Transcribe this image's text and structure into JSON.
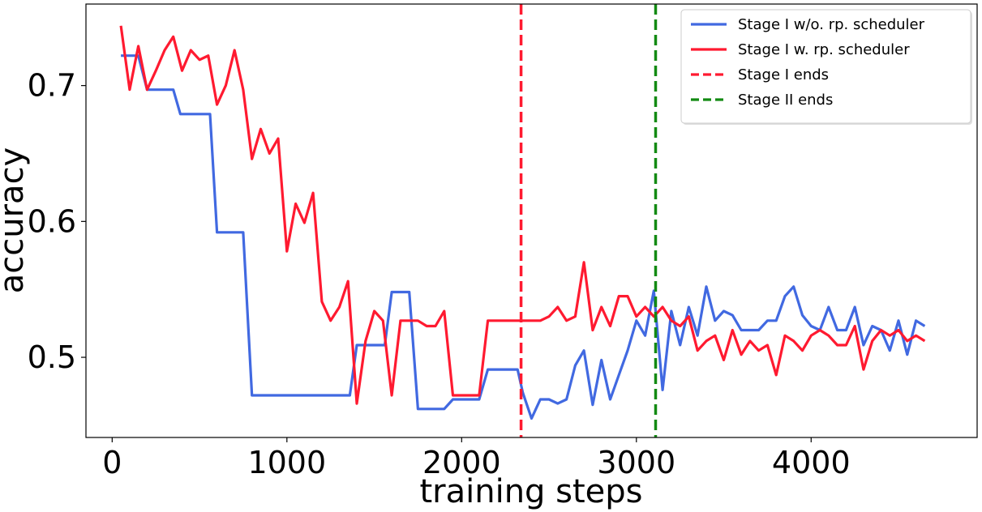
{
  "chart_data": {
    "type": "line",
    "title": "",
    "xlabel": "training steps",
    "ylabel": "accuracy",
    "xlim": [
      -150,
      4950
    ],
    "ylim": [
      0.441,
      0.76
    ],
    "xticks": [
      0,
      1000,
      2000,
      3000,
      4000
    ],
    "xtick_labels": [
      "0",
      "1000",
      "2000",
      "3000",
      "4000"
    ],
    "yticks": [
      0.5,
      0.6,
      0.7
    ],
    "ytick_labels": [
      "0.5",
      "0.6",
      "0.7"
    ],
    "grid": false,
    "legend_position": "top-right",
    "series": [
      {
        "name": "Stage I w/o. rp. scheduler",
        "color": "#4169e1",
        "style": "solid",
        "points": [
          [
            50,
            0.722
          ],
          [
            150,
            0.722
          ],
          [
            200,
            0.697
          ],
          [
            350,
            0.697
          ],
          [
            390,
            0.679
          ],
          [
            560,
            0.679
          ],
          [
            600,
            0.592
          ],
          [
            750,
            0.592
          ],
          [
            800,
            0.472
          ],
          [
            1100,
            0.472
          ],
          [
            1360,
            0.472
          ],
          [
            1400,
            0.509
          ],
          [
            1560,
            0.509
          ],
          [
            1600,
            0.548
          ],
          [
            1700,
            0.548
          ],
          [
            1750,
            0.462
          ],
          [
            1900,
            0.462
          ],
          [
            1950,
            0.469
          ],
          [
            2100,
            0.469
          ],
          [
            2150,
            0.491
          ],
          [
            2320,
            0.491
          ],
          [
            2350,
            0.474
          ],
          [
            2400,
            0.455
          ],
          [
            2450,
            0.469
          ],
          [
            2500,
            0.469
          ],
          [
            2550,
            0.466
          ],
          [
            2600,
            0.469
          ],
          [
            2650,
            0.494
          ],
          [
            2700,
            0.505
          ],
          [
            2750,
            0.465
          ],
          [
            2800,
            0.498
          ],
          [
            2850,
            0.469
          ],
          [
            2900,
            0.487
          ],
          [
            2950,
            0.505
          ],
          [
            3000,
            0.527
          ],
          [
            3050,
            0.516
          ],
          [
            3100,
            0.549
          ],
          [
            3150,
            0.476
          ],
          [
            3200,
            0.534
          ],
          [
            3250,
            0.509
          ],
          [
            3300,
            0.537
          ],
          [
            3350,
            0.516
          ],
          [
            3400,
            0.552
          ],
          [
            3450,
            0.527
          ],
          [
            3500,
            0.534
          ],
          [
            3550,
            0.531
          ],
          [
            3600,
            0.52
          ],
          [
            3650,
            0.52
          ],
          [
            3700,
            0.52
          ],
          [
            3750,
            0.527
          ],
          [
            3800,
            0.527
          ],
          [
            3850,
            0.545
          ],
          [
            3900,
            0.552
          ],
          [
            3950,
            0.531
          ],
          [
            4000,
            0.523
          ],
          [
            4050,
            0.52
          ],
          [
            4100,
            0.537
          ],
          [
            4150,
            0.52
          ],
          [
            4200,
            0.52
          ],
          [
            4250,
            0.537
          ],
          [
            4300,
            0.509
          ],
          [
            4350,
            0.523
          ],
          [
            4400,
            0.52
          ],
          [
            4450,
            0.505
          ],
          [
            4500,
            0.527
          ],
          [
            4550,
            0.502
          ],
          [
            4600,
            0.527
          ],
          [
            4650,
            0.523
          ]
        ]
      },
      {
        "name": "Stage I w. rp. scheduler",
        "color": "#ff1a30",
        "style": "solid",
        "points": [
          [
            50,
            0.744
          ],
          [
            100,
            0.697
          ],
          [
            150,
            0.729
          ],
          [
            200,
            0.697
          ],
          [
            250,
            0.711
          ],
          [
            300,
            0.726
          ],
          [
            350,
            0.736
          ],
          [
            400,
            0.711
          ],
          [
            450,
            0.726
          ],
          [
            500,
            0.719
          ],
          [
            550,
            0.722
          ],
          [
            600,
            0.686
          ],
          [
            650,
            0.7
          ],
          [
            700,
            0.726
          ],
          [
            750,
            0.697
          ],
          [
            800,
            0.646
          ],
          [
            850,
            0.668
          ],
          [
            900,
            0.65
          ],
          [
            950,
            0.661
          ],
          [
            1000,
            0.578
          ],
          [
            1050,
            0.613
          ],
          [
            1100,
            0.599
          ],
          [
            1150,
            0.621
          ],
          [
            1200,
            0.541
          ],
          [
            1250,
            0.527
          ],
          [
            1300,
            0.537
          ],
          [
            1350,
            0.556
          ],
          [
            1400,
            0.466
          ],
          [
            1450,
            0.512
          ],
          [
            1500,
            0.534
          ],
          [
            1550,
            0.527
          ],
          [
            1600,
            0.472
          ],
          [
            1650,
            0.527
          ],
          [
            1750,
            0.527
          ],
          [
            1800,
            0.523
          ],
          [
            1850,
            0.523
          ],
          [
            1900,
            0.534
          ],
          [
            1950,
            0.472
          ],
          [
            2100,
            0.472
          ],
          [
            2150,
            0.527
          ],
          [
            2450,
            0.527
          ],
          [
            2500,
            0.53
          ],
          [
            2550,
            0.537
          ],
          [
            2600,
            0.527
          ],
          [
            2650,
            0.53
          ],
          [
            2700,
            0.57
          ],
          [
            2750,
            0.52
          ],
          [
            2800,
            0.537
          ],
          [
            2850,
            0.523
          ],
          [
            2900,
            0.545
          ],
          [
            2950,
            0.545
          ],
          [
            3000,
            0.53
          ],
          [
            3050,
            0.537
          ],
          [
            3100,
            0.53
          ],
          [
            3150,
            0.537
          ],
          [
            3200,
            0.527
          ],
          [
            3250,
            0.523
          ],
          [
            3300,
            0.53
          ],
          [
            3350,
            0.505
          ],
          [
            3400,
            0.512
          ],
          [
            3450,
            0.516
          ],
          [
            3500,
            0.498
          ],
          [
            3550,
            0.52
          ],
          [
            3600,
            0.502
          ],
          [
            3650,
            0.512
          ],
          [
            3700,
            0.505
          ],
          [
            3750,
            0.509
          ],
          [
            3800,
            0.487
          ],
          [
            3850,
            0.516
          ],
          [
            3900,
            0.512
          ],
          [
            3950,
            0.505
          ],
          [
            4000,
            0.516
          ],
          [
            4050,
            0.52
          ],
          [
            4100,
            0.516
          ],
          [
            4150,
            0.509
          ],
          [
            4200,
            0.509
          ],
          [
            4250,
            0.523
          ],
          [
            4300,
            0.491
          ],
          [
            4350,
            0.512
          ],
          [
            4400,
            0.52
          ],
          [
            4450,
            0.516
          ],
          [
            4500,
            0.52
          ],
          [
            4550,
            0.512
          ],
          [
            4600,
            0.516
          ],
          [
            4650,
            0.512
          ]
        ]
      }
    ],
    "vlines": [
      {
        "name": "Stage I ends",
        "x": 2340,
        "color": "#ff1a30",
        "style": "dashed"
      },
      {
        "name": "Stage II ends",
        "x": 3110,
        "color": "#138a13",
        "style": "dashed"
      }
    ]
  }
}
